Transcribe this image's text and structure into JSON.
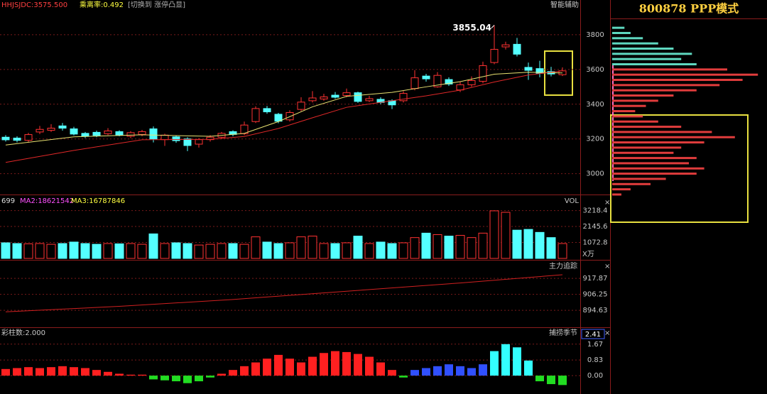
{
  "chart_data": [
    {
      "type": "candlestick",
      "header": [
        "HHJSJDC:3575.500",
        "乘离率:0.492",
        "[切换到 涨停凸显]"
      ],
      "corner_label": "智能辅助",
      "max_label": "3855.04",
      "ylim": [
        2884,
        4000
      ],
      "yticks": [
        3000,
        3200,
        3400,
        3600,
        3800
      ],
      "grid": true,
      "up_color": "#ff3232",
      "down_color": "#54ffff",
      "open": [
        3210,
        3205,
        3192,
        3240,
        3250,
        3275,
        3258,
        3232,
        3238,
        3230,
        3242,
        3215,
        3226,
        3258,
        3196,
        3212,
        3200,
        3170,
        3196,
        3210,
        3242,
        3230,
        3300,
        3375,
        3342,
        3310,
        3370,
        3420,
        3430,
        3452,
        3450,
        3466,
        3420,
        3428,
        3420,
        3420,
        3490,
        3562,
        3500,
        3542,
        3482,
        3512,
        3532,
        3640,
        3730,
        3745,
        3612,
        3605,
        3588,
        3570
      ],
      "close": [
        3195,
        3192,
        3225,
        3255,
        3262,
        3262,
        3228,
        3215,
        3220,
        3246,
        3222,
        3236,
        3242,
        3200,
        3222,
        3190,
        3162,
        3196,
        3210,
        3232,
        3226,
        3280,
        3375,
        3356,
        3302,
        3352,
        3412,
        3436,
        3442,
        3440,
        3466,
        3416,
        3432,
        3410,
        3396,
        3462,
        3552,
        3546,
        3566,
        3516,
        3512,
        3536,
        3622,
        3716,
        3742,
        3688,
        3595,
        3578,
        3574,
        3592
      ],
      "high": [
        3222,
        3215,
        3235,
        3275,
        3285,
        3292,
        3270,
        3240,
        3248,
        3262,
        3250,
        3245,
        3252,
        3272,
        3230,
        3220,
        3210,
        3205,
        3222,
        3240,
        3250,
        3300,
        3388,
        3390,
        3350,
        3365,
        3440,
        3475,
        3460,
        3470,
        3490,
        3472,
        3448,
        3440,
        3428,
        3475,
        3596,
        3575,
        3585,
        3555,
        3530,
        3560,
        3645,
        3855.04,
        3760,
        3782,
        3640,
        3650,
        3615,
        3612
      ],
      "low": [
        3185,
        3180,
        3182,
        3228,
        3240,
        3248,
        3220,
        3205,
        3210,
        3222,
        3215,
        3205,
        3215,
        3180,
        3160,
        3178,
        3130,
        3150,
        3185,
        3200,
        3215,
        3222,
        3292,
        3345,
        3290,
        3300,
        3360,
        3410,
        3420,
        3432,
        3440,
        3408,
        3412,
        3400,
        3372,
        3410,
        3480,
        3530,
        3495,
        3505,
        3470,
        3500,
        3520,
        3630,
        3715,
        3675,
        3540,
        3555,
        3560,
        3562
      ],
      "series": [
        {
          "color": "#e8e070",
          "x": [
            0,
            6,
            12,
            18,
            21,
            24,
            27,
            30,
            34,
            37,
            40,
            43,
            46,
            49
          ],
          "values": [
            3165,
            3212,
            3224,
            3215,
            3232,
            3300,
            3385,
            3445,
            3468,
            3500,
            3530,
            3573,
            3584,
            3580
          ]
        },
        {
          "color": "#e02828",
          "x": [
            0,
            6,
            12,
            18,
            21,
            24,
            27,
            30,
            34,
            37,
            40,
            43,
            46,
            49
          ],
          "values": [
            3065,
            3134,
            3195,
            3198,
            3214,
            3260,
            3322,
            3382,
            3420,
            3448,
            3481,
            3528,
            3568,
            3592
          ]
        }
      ]
    },
    {
      "type": "volume",
      "header": [
        "699",
        "MA2:18621542",
        "MA3:16787846"
      ],
      "corner_label": "VOL",
      "unit": "X万",
      "ylim": [
        0,
        4200
      ],
      "yticks": [
        1072.8,
        2145.6,
        3218.4
      ],
      "grid": true,
      "values": [
        1050,
        1000,
        980,
        1000,
        950,
        1000,
        1100,
        1000,
        950,
        1000,
        980,
        1000,
        950,
        1650,
        1000,
        1050,
        1000,
        900,
        950,
        1000,
        1000,
        950,
        1450,
        1100,
        1000,
        1050,
        1450,
        1500,
        1000,
        1000,
        1050,
        1500,
        1000,
        1100,
        1000,
        1050,
        1400,
        1700,
        1600,
        1500,
        1550,
        1400,
        1700,
        3200,
        3100,
        1900,
        1950,
        1750,
        1400,
        1000
      ]
    },
    {
      "type": "line",
      "title": "主力追踪",
      "color": "#d02020",
      "ylim": [
        882.8,
        930.3
      ],
      "yticks": [
        894.63,
        906.25,
        917.87
      ],
      "grid": true,
      "x": [
        0,
        10,
        20,
        30,
        40,
        49
      ],
      "values": [
        893.5,
        897.5,
        902.5,
        908.5,
        914.5,
        920.5
      ]
    },
    {
      "type": "bar",
      "header": "彩柱数:2.000",
      "title": "捕捞季节",
      "value_box": "2.41",
      "ylim": [
        -0.9,
        2.49
      ],
      "yticks": [
        {
          "value": 0,
          "label": "0.00"
        },
        0.83,
        1.67
      ],
      "grid": true,
      "values": [
        0.35,
        0.4,
        0.45,
        0.4,
        0.45,
        0.5,
        0.45,
        0.4,
        0.3,
        0.2,
        0.1,
        0.05,
        0.05,
        -0.2,
        -0.25,
        -0.3,
        -0.4,
        -0.3,
        -0.1,
        0.1,
        0.3,
        0.5,
        0.7,
        0.9,
        1.1,
        0.9,
        0.7,
        1.0,
        1.2,
        1.3,
        1.25,
        1.15,
        1.0,
        0.7,
        0.3,
        -0.1,
        0.3,
        0.4,
        0.5,
        0.6,
        0.5,
        0.4,
        0.6,
        1.3,
        1.67,
        1.5,
        0.8,
        -0.3,
        -0.45,
        -0.5
      ],
      "colors": [
        "#ff2020",
        "#ff2020",
        "#ff2020",
        "#ff2020",
        "#ff2020",
        "#ff2020",
        "#ff2020",
        "#ff2020",
        "#ff2020",
        "#ff2020",
        "#ff2020",
        "#ff2020",
        "#ff2020",
        "#22dd22",
        "#22dd22",
        "#22dd22",
        "#22dd22",
        "#22dd22",
        "#22dd22",
        "#ff2020",
        "#ff2020",
        "#ff2020",
        "#ff2020",
        "#ff2020",
        "#ff2020",
        "#ff2020",
        "#ff2020",
        "#ff2020",
        "#ff2020",
        "#ff2020",
        "#ff2020",
        "#ff2020",
        "#ff2020",
        "#ff2020",
        "#ff2020",
        "#22dd22",
        "#3050ff",
        "#3050ff",
        "#3050ff",
        "#3050ff",
        "#3050ff",
        "#3050ff",
        "#3050ff",
        "#33ffff",
        "#33ffff",
        "#33ffff",
        "#33ffff",
        "#22dd22",
        "#22dd22",
        "#22dd22"
      ]
    },
    {
      "type": "hbar",
      "title": "800878 PPP模式",
      "xlim": [
        0,
        100
      ],
      "series": [
        {
          "color": "#5fd8c0",
          "levels": [
            3840,
            3810,
            3780,
            3750,
            3720,
            3690,
            3660,
            3630
          ],
          "values": [
            8,
            12,
            20,
            30,
            40,
            52,
            45,
            55
          ]
        },
        {
          "color": "#e03c3c",
          "levels": [
            3600,
            3570,
            3540,
            3510,
            3480,
            3450,
            3420,
            3390,
            3360,
            3330,
            3300,
            3270,
            3240,
            3210,
            3180,
            3150,
            3120,
            3090,
            3060,
            3030,
            3000,
            2970,
            2940,
            2910,
            2880
          ],
          "values": [
            75,
            95,
            85,
            70,
            55,
            40,
            30,
            22,
            15,
            20,
            30,
            45,
            65,
            80,
            60,
            45,
            40,
            55,
            50,
            60,
            55,
            35,
            25,
            12,
            6
          ]
        }
      ]
    }
  ]
}
